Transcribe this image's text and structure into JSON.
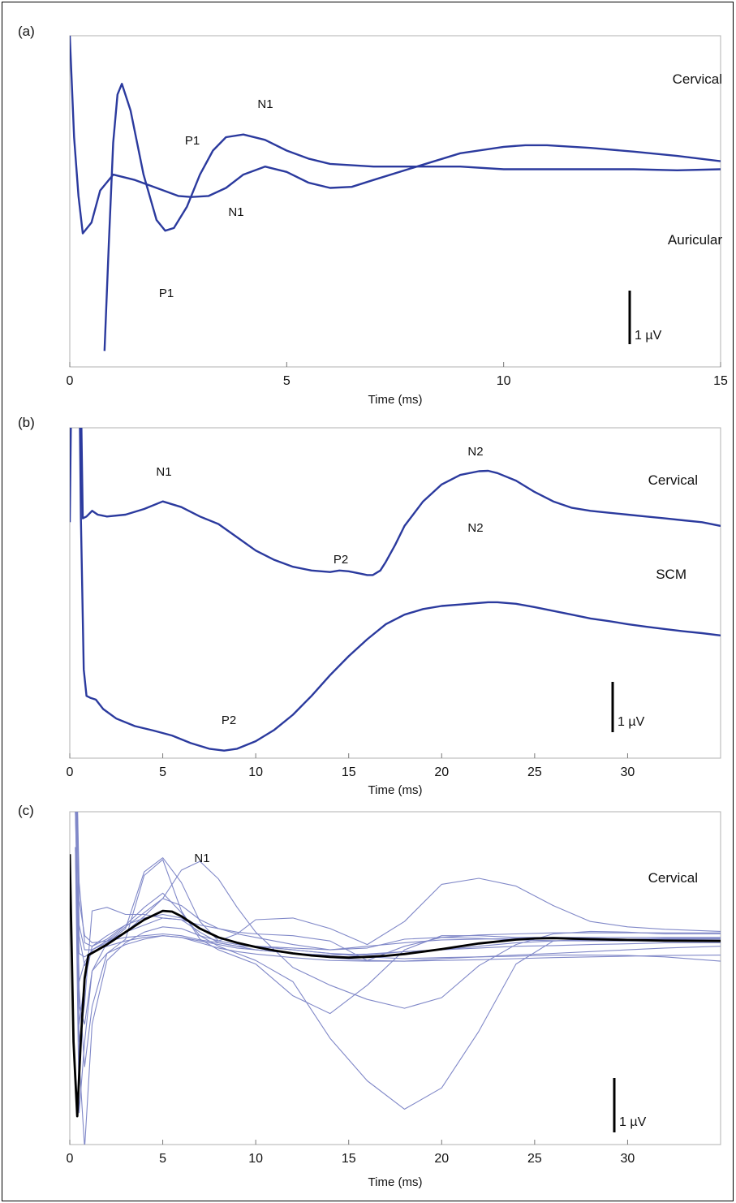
{
  "chart_data": [
    {
      "panel": "(a)",
      "type": "line",
      "xlabel": "Time (ms)",
      "xlim": [
        0,
        15
      ],
      "xticks": [
        0,
        5,
        10,
        15
      ],
      "scale_bar": "1 µV",
      "trace_color": "#2b3a9e",
      "series": [
        {
          "name": "Cervical",
          "x": [
            0,
            0.1,
            0.2,
            0.3,
            0.5,
            0.7,
            1.0,
            1.5,
            2.0,
            2.5,
            2.8,
            3.2,
            3.6,
            4.0,
            4.5,
            5.0,
            5.5,
            6.0,
            6.5,
            7.0,
            8.0,
            9.0,
            10.0,
            10.5,
            11.0,
            12.0,
            13.0,
            14.0,
            15.0
          ],
          "y": [
            3.9,
            2.0,
            0.9,
            0.2,
            0.4,
            1.0,
            1.3,
            1.2,
            1.05,
            0.9,
            0.88,
            0.9,
            1.05,
            1.3,
            1.45,
            1.35,
            1.15,
            1.05,
            1.07,
            1.2,
            1.45,
            1.7,
            1.82,
            1.85,
            1.85,
            1.8,
            1.73,
            1.65,
            1.55
          ]
        },
        {
          "name": "Auricular",
          "x": [
            0.8,
            0.9,
            1.0,
            1.1,
            1.2,
            1.4,
            1.7,
            2.0,
            2.2,
            2.4,
            2.7,
            3.0,
            3.3,
            3.6,
            4.0,
            4.5,
            5.0,
            5.5,
            6.0,
            7.0,
            8.0,
            9.0,
            10.0,
            11.0,
            12.0,
            13.0,
            14.0,
            15.0
          ],
          "y": [
            -2.0,
            0.0,
            1.9,
            2.8,
            3.0,
            2.5,
            1.3,
            0.45,
            0.25,
            0.3,
            0.7,
            1.3,
            1.75,
            2.0,
            2.05,
            1.95,
            1.75,
            1.6,
            1.5,
            1.45,
            1.45,
            1.45,
            1.4,
            1.4,
            1.4,
            1.4,
            1.38,
            1.4
          ]
        }
      ],
      "annotations": [
        "P1",
        "N1",
        "P1",
        "N1"
      ]
    },
    {
      "panel": "(b)",
      "type": "line",
      "xlabel": "Time (ms)",
      "xlim": [
        0,
        35
      ],
      "xticks": [
        0,
        5,
        10,
        15,
        20,
        25,
        30
      ],
      "scale_bar": "1 µV",
      "trace_color": "#2b3a9e",
      "series": [
        {
          "name": "Cervical",
          "x": [
            0,
            0.15,
            0.3,
            0.5,
            0.7,
            0.9,
            1.2,
            1.5,
            2,
            3,
            4,
            5,
            6,
            7,
            8,
            9,
            10,
            11,
            12,
            13,
            14,
            14.5,
            15,
            15.5,
            16,
            16.3,
            16.7,
            17,
            17.5,
            18,
            19,
            20,
            21,
            22,
            22.5,
            23,
            24,
            25,
            26,
            27,
            28,
            29,
            30,
            31,
            32,
            33,
            34,
            35
          ],
          "y": [
            1.4,
            8,
            12,
            8,
            1.5,
            1.55,
            1.7,
            1.6,
            1.55,
            1.6,
            1.75,
            1.95,
            1.8,
            1.55,
            1.35,
            1.0,
            0.65,
            0.4,
            0.22,
            0.12,
            0.08,
            0.12,
            0.1,
            0.05,
            0.0,
            0.0,
            0.12,
            0.35,
            0.8,
            1.3,
            1.95,
            2.4,
            2.65,
            2.75,
            2.76,
            2.7,
            2.5,
            2.2,
            1.95,
            1.78,
            1.7,
            1.65,
            1.6,
            1.55,
            1.5,
            1.45,
            1.4,
            1.3
          ]
        },
        {
          "name": "SCM",
          "x": [
            0.35,
            0.5,
            0.6,
            0.75,
            0.9,
            1.1,
            1.4,
            1.8,
            2.5,
            3.5,
            4.5,
            5.5,
            6.5,
            7.5,
            8.3,
            9.0,
            10.0,
            11.0,
            12.0,
            13.0,
            14.0,
            15.0,
            16.0,
            17.0,
            18.0,
            19.0,
            20.0,
            21.0,
            22.0,
            22.5,
            23.0,
            24.0,
            25.0,
            26.0,
            27.0,
            28.0,
            29.0,
            30.0,
            31.0,
            32.0,
            33.0,
            34.0,
            35.0
          ],
          "y": [
            12,
            6,
            1.5,
            -2.5,
            -3.2,
            -3.25,
            -3.3,
            -3.55,
            -3.8,
            -4.0,
            -4.12,
            -4.25,
            -4.45,
            -4.6,
            -4.65,
            -4.6,
            -4.4,
            -4.1,
            -3.7,
            -3.2,
            -2.65,
            -2.15,
            -1.7,
            -1.3,
            -1.05,
            -0.9,
            -0.82,
            -0.78,
            -0.74,
            -0.72,
            -0.72,
            -0.76,
            -0.85,
            -0.95,
            -1.05,
            -1.15,
            -1.22,
            -1.3,
            -1.37,
            -1.43,
            -1.49,
            -1.54,
            -1.6
          ]
        }
      ],
      "annotations": [
        "N1",
        "P2",
        "N2",
        "N2",
        "P2"
      ]
    },
    {
      "panel": "(c)",
      "type": "line",
      "xlabel": "Time (ms)",
      "xlim": [
        0,
        35
      ],
      "xticks": [
        0,
        5,
        10,
        15,
        20,
        25,
        30
      ],
      "scale_bar": "1 µV",
      "trace_color": "#8088c8",
      "mean_color": "#000000",
      "trace_label": "Cervical",
      "annotations": [
        "N1"
      ],
      "mean_series": {
        "x": [
          0,
          0.2,
          0.4,
          0.6,
          0.8,
          1.0,
          1.5,
          2,
          3,
          4,
          5,
          5.5,
          6,
          7,
          8,
          9,
          10,
          11,
          12,
          13,
          14,
          15,
          16,
          17,
          18,
          19,
          20,
          22,
          24,
          25,
          26,
          28,
          30,
          32,
          35
        ],
        "y": [
          2.8,
          -2.5,
          -4.6,
          -2.4,
          -0.7,
          -0.05,
          0.1,
          0.25,
          0.6,
          0.95,
          1.2,
          1.18,
          1.05,
          0.7,
          0.45,
          0.3,
          0.18,
          0.08,
          0.0,
          -0.06,
          -0.1,
          -0.12,
          -0.1,
          -0.07,
          -0.02,
          0.05,
          0.12,
          0.28,
          0.39,
          0.42,
          0.43,
          0.4,
          0.38,
          0.36,
          0.35
        ]
      },
      "series": [
        {
          "x": [
            0.3,
            0.5,
            0.8,
            1.2,
            2,
            3,
            4,
            5,
            6,
            7,
            8,
            9,
            10,
            12,
            14,
            16,
            18,
            20,
            22,
            24,
            26,
            28,
            30,
            32,
            35
          ],
          "y": [
            7,
            0.5,
            -0.35,
            0.1,
            0.35,
            0.6,
            1.05,
            1.55,
            2.35,
            2.6,
            2.1,
            1.3,
            0.6,
            -0.4,
            -0.9,
            -1.3,
            -1.55,
            -1.25,
            -0.35,
            0.25,
            0.55,
            0.62,
            0.6,
            0.55,
            0.55
          ]
        },
        {
          "x": [
            0.3,
            0.5,
            0.8,
            1.2,
            2,
            3,
            4,
            5,
            6,
            7,
            8,
            9,
            10,
            12,
            14,
            16,
            18,
            20,
            22,
            24,
            26,
            28,
            30,
            32,
            35
          ],
          "y": [
            7,
            2,
            0.3,
            0.2,
            0.4,
            0.8,
            1.3,
            1.7,
            1.15,
            0.5,
            0.2,
            0.0,
            -0.2,
            -0.8,
            -2.4,
            -3.6,
            -4.4,
            -3.8,
            -2.2,
            -0.3,
            0.35,
            0.4,
            0.38,
            0.36,
            0.35
          ]
        },
        {
          "x": [
            0.3,
            0.5,
            0.8,
            1.2,
            2,
            3,
            4,
            5,
            6,
            7,
            8,
            9,
            10,
            12,
            14,
            16,
            18,
            20,
            22,
            24,
            26,
            28,
            30,
            32,
            35
          ],
          "y": [
            6,
            0.8,
            0.1,
            0.1,
            0.3,
            0.7,
            2.3,
            2.7,
            2.0,
            0.9,
            0.35,
            0.55,
            0.95,
            1.0,
            0.7,
            0.25,
            0.9,
            1.95,
            2.12,
            1.9,
            1.35,
            0.9,
            0.75,
            0.68,
            0.62
          ]
        },
        {
          "x": [
            0.3,
            0.5,
            0.8,
            1.2,
            2,
            3,
            4,
            5,
            6,
            7,
            8,
            9,
            10,
            12,
            14,
            16,
            18,
            20,
            22,
            24,
            26,
            28,
            30,
            32,
            35
          ],
          "y": [
            5,
            -1,
            -3.2,
            -1.5,
            0.0,
            0.4,
            2.2,
            2.65,
            1.2,
            0.4,
            0.1,
            -0.1,
            -0.3,
            -1.2,
            -1.7,
            -0.9,
            0.1,
            0.5,
            0.5,
            0.45,
            0.45,
            0.42,
            0.4,
            0.4,
            0.4
          ]
        },
        {
          "x": [
            0.3,
            0.5,
            0.8,
            1.2,
            2,
            3,
            4,
            5,
            6,
            7,
            8,
            9,
            10,
            12,
            14,
            16,
            18,
            20,
            22,
            24,
            26,
            28,
            30,
            32,
            35
          ],
          "y": [
            5,
            -2.5,
            -1.4,
            1.2,
            1.3,
            1.1,
            1.1,
            1.0,
            0.95,
            0.8,
            0.7,
            0.6,
            0.55,
            0.5,
            0.35,
            -0.2,
            0.2,
            0.45,
            0.52,
            0.55,
            0.58,
            0.58,
            0.58,
            0.58,
            0.58
          ]
        },
        {
          "x": [
            0.3,
            0.5,
            0.8,
            1.2,
            2,
            3,
            4,
            5,
            6,
            7,
            8,
            9,
            10,
            12,
            14,
            16,
            18,
            20,
            22,
            24,
            26,
            28,
            30,
            32,
            35
          ],
          "y": [
            4,
            -0.8,
            -0.25,
            0.1,
            0.35,
            0.75,
            1.15,
            1.55,
            1.35,
            0.95,
            0.7,
            0.55,
            0.45,
            0.25,
            0.1,
            0.15,
            0.4,
            0.45,
            0.42,
            0.38,
            0.36,
            0.35,
            0.35,
            0.35,
            0.35
          ]
        },
        {
          "x": [
            0.3,
            0.5,
            0.8,
            1.2,
            2,
            3,
            4,
            5,
            6,
            7,
            8,
            9,
            10,
            12,
            14,
            16,
            18,
            20,
            22,
            24,
            26,
            28,
            30,
            32,
            35
          ],
          "y": [
            3,
            -4.5,
            -2.5,
            -0.5,
            0.3,
            0.6,
            0.8,
            1.0,
            0.95,
            0.6,
            0.3,
            0.2,
            0.2,
            0.15,
            0.1,
            0.2,
            0.3,
            0.38,
            0.4,
            0.42,
            0.45,
            0.45,
            0.45,
            0.45,
            0.45
          ]
        },
        {
          "x": [
            0.3,
            0.5,
            0.8,
            1.2,
            2,
            3,
            4,
            5,
            6,
            7,
            8,
            9,
            10,
            12,
            14,
            16,
            18,
            20,
            22,
            24,
            26,
            28,
            30,
            32,
            35
          ],
          "y": [
            7,
            1.5,
            0.5,
            0.3,
            0.35,
            0.45,
            0.5,
            0.55,
            0.5,
            0.38,
            0.3,
            0.2,
            0.1,
            0.0,
            -0.12,
            -0.2,
            -0.22,
            -0.15,
            -0.1,
            -0.05,
            0.0,
            0.05,
            0.1,
            0.15,
            0.2
          ]
        },
        {
          "x": [
            0.3,
            0.5,
            0.8,
            1.2,
            2,
            3,
            4,
            5,
            6,
            7,
            8,
            9,
            10,
            12,
            14,
            16,
            18,
            20,
            22,
            24,
            26,
            28,
            30,
            32,
            35
          ],
          "y": [
            6,
            -3.0,
            -5.5,
            -2.0,
            -0.2,
            0.3,
            0.6,
            0.75,
            0.7,
            0.5,
            0.35,
            0.25,
            0.2,
            0.1,
            0.0,
            -0.1,
            -0.15,
            -0.12,
            -0.1,
            -0.08,
            -0.05,
            -0.05,
            -0.06,
            -0.1,
            -0.22
          ]
        },
        {
          "x": [
            0.3,
            0.5,
            0.8,
            1.2,
            2,
            3,
            4,
            5,
            6,
            7,
            8,
            9,
            10,
            12,
            14,
            16,
            18,
            20,
            22,
            24,
            26,
            28,
            30,
            32,
            35
          ],
          "y": [
            4,
            0.0,
            -0.1,
            0.05,
            0.2,
            0.35,
            0.45,
            0.5,
            0.45,
            0.35,
            0.25,
            0.15,
            0.1,
            0.0,
            -0.05,
            -0.02,
            0.05,
            0.1,
            0.15,
            0.2,
            0.22,
            0.25,
            0.27,
            0.3,
            0.3
          ]
        },
        {
          "x": [
            0.3,
            0.5,
            0.8,
            1.2,
            2,
            3,
            4,
            5,
            6,
            7,
            8,
            9,
            10,
            12,
            14,
            16,
            18,
            20,
            22,
            24,
            26,
            28,
            30,
            32,
            35
          ],
          "y": [
            5,
            -1.5,
            -2.0,
            -0.5,
            0.0,
            0.25,
            0.4,
            0.5,
            0.45,
            0.3,
            0.15,
            0.05,
            -0.02,
            -0.12,
            -0.2,
            -0.22,
            -0.22,
            -0.2,
            -0.18,
            -0.15,
            -0.12,
            -0.1,
            -0.08,
            -0.06,
            -0.05
          ]
        },
        {
          "x": [
            0.3,
            0.5,
            0.8,
            1.2,
            2,
            3,
            4,
            5,
            6,
            7,
            8,
            9,
            10,
            12,
            14,
            16,
            18,
            20,
            22,
            24,
            26,
            28,
            30,
            32,
            35
          ],
          "y": [
            3,
            -2.0,
            -0.8,
            0.2,
            0.5,
            0.8,
            1.0,
            1.1,
            1.0,
            0.7,
            0.45,
            0.3,
            0.2,
            0.1,
            0.0,
            -0.05,
            0.05,
            0.1,
            0.2,
            0.3,
            0.35,
            0.38,
            0.4,
            0.42,
            0.42
          ]
        }
      ]
    }
  ],
  "colors": {
    "trace": "#2b3a9e",
    "individual_trace": "#8088c8",
    "mean_trace": "#000000",
    "axes": "#b0b0b0",
    "text": "#111111"
  }
}
